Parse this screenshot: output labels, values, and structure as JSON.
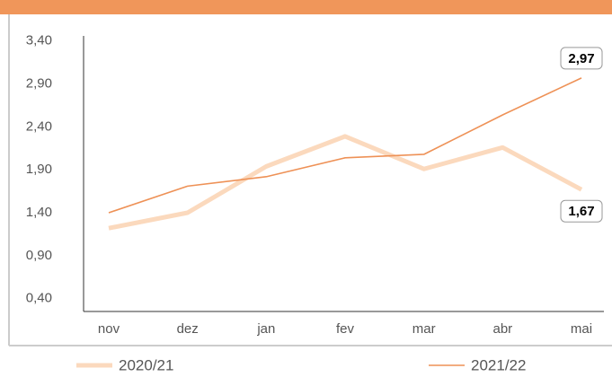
{
  "chart_data": {
    "type": "line",
    "categories": [
      "nov",
      "dez",
      "jan",
      "fev",
      "mar",
      "abr",
      "mai"
    ],
    "series": [
      {
        "name": "2020/21",
        "color": "#fbd9bd",
        "width": 5,
        "values": [
          1.22,
          1.4,
          1.94,
          2.29,
          1.91,
          2.16,
          1.67
        ],
        "value_labels": [
          null,
          null,
          null,
          null,
          null,
          null,
          "1,67"
        ]
      },
      {
        "name": "2021/22",
        "color": "#ee9156",
        "width": 1.6,
        "values": [
          1.4,
          1.71,
          1.82,
          2.04,
          2.08,
          2.54,
          2.97
        ],
        "value_labels": [
          null,
          null,
          null,
          null,
          null,
          null,
          "2,97"
        ]
      }
    ],
    "ylim": [
      0.25,
      3.46
    ],
    "yticks": [
      {
        "value": 0.4,
        "label": "0,40"
      },
      {
        "value": 0.9,
        "label": "0,90"
      },
      {
        "value": 1.4,
        "label": "1,40"
      },
      {
        "value": 1.9,
        "label": "1,90"
      },
      {
        "value": 2.4,
        "label": "2,40"
      },
      {
        "value": 2.9,
        "label": "2,90"
      },
      {
        "value": 3.4,
        "label": "3,40"
      }
    ]
  }
}
